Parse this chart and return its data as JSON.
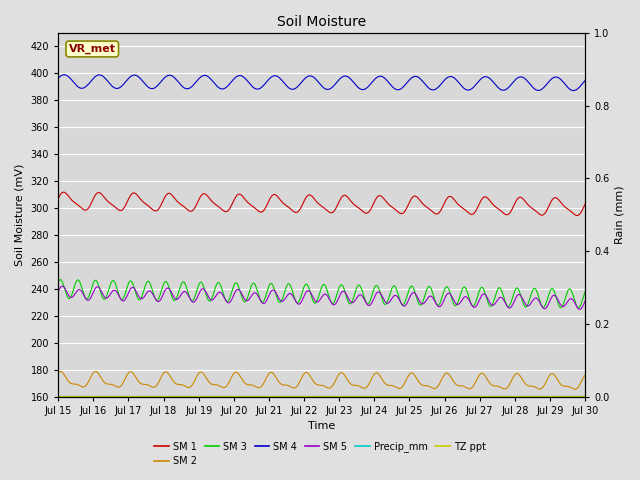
{
  "title": "Soil Moisture",
  "xlabel": "Time",
  "ylabel_left": "Soil Moisture (mV)",
  "ylabel_right": "Rain (mm)",
  "xlim": [
    0,
    360
  ],
  "ylim_left": [
    160,
    430
  ],
  "ylim_right": [
    0.0,
    1.0
  ],
  "yticks_left": [
    160,
    180,
    200,
    220,
    240,
    260,
    280,
    300,
    320,
    340,
    360,
    380,
    400,
    420
  ],
  "yticks_right": [
    0.0,
    0.2,
    0.4,
    0.6,
    0.8,
    1.0
  ],
  "xtick_labels": [
    "Jul 15",
    "Jul 16",
    "Jul 17",
    "Jul 18",
    "Jul 19",
    "Jul 20",
    "Jul 21",
    "Jul 22",
    "Jul 23",
    "Jul 24",
    "Jul 25",
    "Jul 26",
    "Jul 27",
    "Jul 28",
    "Jul 29",
    "Jul 30"
  ],
  "background_color": "#e0e0e0",
  "plot_bg_color": "#d8d8d8",
  "sm1_color": "#cc0000",
  "sm2_color": "#cc8800",
  "sm3_color": "#00cc00",
  "sm4_color": "#0000cc",
  "sm5_color": "#9900cc",
  "precip_color": "#00cccc",
  "tz_color": "#cccc00",
  "annotation_text": "VR_met",
  "annotation_bg": "#ffffcc",
  "annotation_border": "#888800",
  "sm1_base": 305,
  "sm1_amp": 6,
  "sm1_period": 24,
  "sm1_drift": -0.012,
  "sm2_base": 172,
  "sm2_amp": 5,
  "sm2_period": 24,
  "sm2_drift": -0.005,
  "sm3_base": 240,
  "sm3_amp": 7,
  "sm3_period": 12,
  "sm3_drift": -0.02,
  "sm4_base": 394,
  "sm4_amp": 5,
  "sm4_period": 24,
  "sm4_drift": -0.005,
  "sm5_base": 237,
  "sm5_amp": 4,
  "sm5_period": 12,
  "sm5_drift": -0.02
}
